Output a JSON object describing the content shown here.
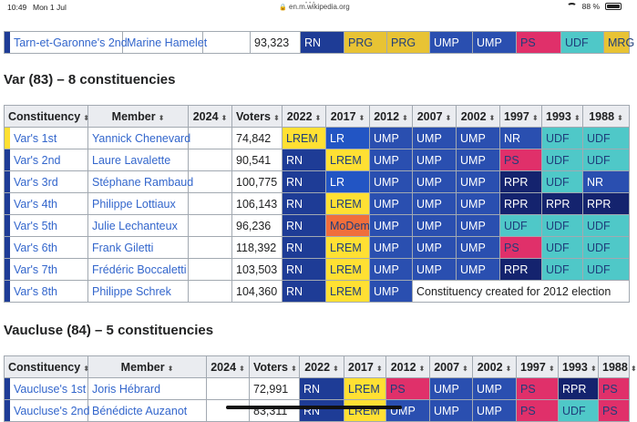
{
  "status": {
    "time": "10:49",
    "date": "Mon 1 Jul",
    "url": "en.m.wikipedia.org",
    "battery": "88 %",
    "battery_level": 0.88
  },
  "colors": {
    "RN": "#1e3c96",
    "LREM": "#ffe033",
    "LR": "#2255c4",
    "UMP": "#2a4fb0",
    "NR": "#2a4fb0",
    "RPR": "#14236e",
    "UDF": "#4fc8c8",
    "PS": "#e0306a",
    "MoDem": "#f06e3c",
    "PRG": "#e8c334",
    "MRG": "#e8c334"
  },
  "columns": [
    "Constituency",
    "Member",
    "2024",
    "Voters",
    "2022",
    "2017",
    "2012",
    "2007",
    "2002",
    "1997",
    "1993",
    "1988"
  ],
  "top_row": {
    "constituency": "Tarn-et-Garonne's 2nd",
    "member": "Marine Hamelet",
    "voters": "93,323",
    "cells": [
      "RN",
      "PRG",
      "PRG",
      "UMP",
      "UMP",
      "PS",
      "UDF",
      "MRG"
    ],
    "cell_colors": [
      "RN",
      "PRG",
      "PRG",
      "UMP",
      "UMP",
      "PS",
      "UDF",
      "MRG"
    ],
    "bar_color": "RN"
  },
  "var": {
    "heading": "Var (83) – 8 constituencies",
    "rows": [
      {
        "constituency": "Var's 1st",
        "member": "Yannick Chenevard",
        "voters": "74,842",
        "bar_color": "LREM",
        "cells": [
          "LREM",
          "LR",
          "UMP",
          "UMP",
          "UMP",
          "NR",
          "UDF",
          "UDF"
        ]
      },
      {
        "constituency": "Var's 2nd",
        "member": "Laure Lavalette",
        "voters": "90,541",
        "bar_color": "RN",
        "cells": [
          "RN",
          "LREM",
          "UMP",
          "UMP",
          "UMP",
          "PS",
          "UDF",
          "UDF"
        ]
      },
      {
        "constituency": "Var's 3rd",
        "member": "Stéphane Rambaud",
        "voters": "100,775",
        "bar_color": "RN",
        "cells": [
          "RN",
          "LR",
          "UMP",
          "UMP",
          "UMP",
          "RPR",
          "UDF",
          "NR"
        ]
      },
      {
        "constituency": "Var's 4th",
        "member": "Philippe Lottiaux",
        "voters": "106,143",
        "bar_color": "RN",
        "cells": [
          "RN",
          "LREM",
          "UMP",
          "UMP",
          "UMP",
          "RPR",
          "RPR",
          "RPR"
        ]
      },
      {
        "constituency": "Var's 5th",
        "member": "Julie Lechanteux",
        "voters": "96,236",
        "bar_color": "RN",
        "cells": [
          "RN",
          "MoDem",
          "UMP",
          "UMP",
          "UMP",
          "UDF",
          "UDF",
          "UDF"
        ]
      },
      {
        "constituency": "Var's 6th",
        "member": "Frank Giletti",
        "voters": "118,392",
        "bar_color": "RN",
        "cells": [
          "RN",
          "LREM",
          "UMP",
          "UMP",
          "UMP",
          "PS",
          "UDF",
          "UDF"
        ]
      },
      {
        "constituency": "Var's 7th",
        "member": "Frédéric Boccaletti",
        "voters": "103,503",
        "bar_color": "RN",
        "cells": [
          "RN",
          "LREM",
          "UMP",
          "UMP",
          "UMP",
          "RPR",
          "UDF",
          "UDF"
        ]
      },
      {
        "constituency": "Var's 8th",
        "member": "Philippe Schrek",
        "voters": "104,360",
        "bar_color": "RN",
        "cells": [
          "RN",
          "LREM",
          "UMP"
        ],
        "note": "Constituency created for 2012 election"
      }
    ]
  },
  "vaucluse": {
    "heading": "Vaucluse (84) – 5 constituencies",
    "rows": [
      {
        "constituency": "Vaucluse's 1st",
        "member": "Joris Hébrard",
        "voters": "72,991",
        "bar_color": "RN",
        "cells": [
          "RN",
          "LREM",
          "PS",
          "UMP",
          "UMP",
          "PS",
          "RPR",
          "PS"
        ]
      },
      {
        "constituency": "Vaucluse's 2nd",
        "member": "Bénédicte Auzanot",
        "voters": "83,311",
        "bar_color": "RN",
        "cells": [
          "RN",
          "LREM",
          "UMP",
          "UMP",
          "UMP",
          "PS",
          "UDF",
          "PS"
        ]
      }
    ]
  }
}
